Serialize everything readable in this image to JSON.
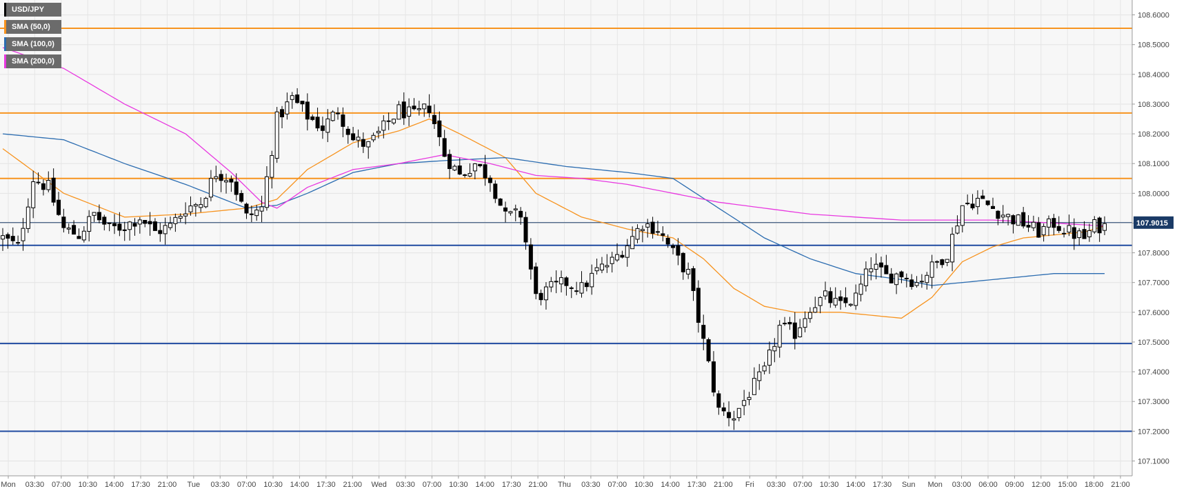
{
  "symbol": "USD/JPY",
  "legend": [
    {
      "label": "USD/JPY",
      "color": "#000000"
    },
    {
      "label": "SMA (50,0)",
      "color": "#f7931e"
    },
    {
      "label": "SMA (100,0)",
      "color": "#2b6cb0"
    },
    {
      "label": "SMA (200,0)",
      "color": "#e838e0"
    }
  ],
  "current_price": "107.9015",
  "colors": {
    "up_candle": "#ffffff",
    "down_candle": "#000000",
    "resistance": "#f7931e",
    "support": "#1f4aa0",
    "sma50": "#f7931e",
    "sma100": "#2b6cb0",
    "sma200": "#e838e0",
    "price_label_bg": "#1a3a66"
  },
  "chart_data": {
    "type": "candlestick",
    "ylim": [
      107.05,
      108.65
    ],
    "y_ticks": [
      "108.6000",
      "108.5000",
      "108.4000",
      "108.3000",
      "108.2000",
      "108.1000",
      "108.0000",
      "107.9000",
      "107.8000",
      "107.7000",
      "107.6000",
      "107.5000",
      "107.4000",
      "107.3000",
      "107.2000",
      "107.1000"
    ],
    "x_ticks": [
      "Mon",
      "03:30",
      "07:00",
      "10:30",
      "14:00",
      "17:30",
      "21:00",
      "Tue",
      "03:30",
      "07:00",
      "10:30",
      "14:00",
      "17:30",
      "21:00",
      "Wed",
      "03:30",
      "07:00",
      "10:30",
      "14:00",
      "17:30",
      "21:00",
      "Thu",
      "03:30",
      "07:00",
      "10:30",
      "14:00",
      "17:30",
      "21:00",
      "Fri",
      "03:30",
      "07:00",
      "10:30",
      "14:00",
      "17:30",
      "Sun",
      "Mon",
      "03:00",
      "06:00",
      "09:00",
      "12:00",
      "15:00",
      "18:00",
      "21:00"
    ],
    "horizontal_levels": [
      {
        "value": 108.555,
        "kind": "resistance"
      },
      {
        "value": 108.27,
        "kind": "resistance"
      },
      {
        "value": 108.05,
        "kind": "resistance"
      },
      {
        "value": 107.825,
        "kind": "support"
      },
      {
        "value": 107.495,
        "kind": "support"
      },
      {
        "value": 107.2,
        "kind": "support"
      }
    ],
    "current_price_line": 107.9015,
    "close_path": [
      [
        0,
        107.85
      ],
      [
        3,
        107.82
      ],
      [
        6,
        108.05
      ],
      [
        9,
        108.02
      ],
      [
        12,
        107.88
      ],
      [
        15,
        107.86
      ],
      [
        18,
        107.93
      ],
      [
        21,
        107.88
      ],
      [
        24,
        107.89
      ],
      [
        27,
        107.92
      ],
      [
        30,
        107.87
      ],
      [
        33,
        107.89
      ],
      [
        36,
        107.95
      ],
      [
        39,
        107.97
      ],
      [
        42,
        108.07
      ],
      [
        45,
        108.05
      ],
      [
        48,
        107.92
      ],
      [
        51,
        107.95
      ],
      [
        54,
        108.25
      ],
      [
        57,
        108.32
      ],
      [
        60,
        108.26
      ],
      [
        63,
        108.22
      ],
      [
        66,
        108.28
      ],
      [
        69,
        108.18
      ],
      [
        72,
        108.16
      ],
      [
        75,
        108.22
      ],
      [
        78,
        108.28
      ],
      [
        81,
        108.26
      ],
      [
        84,
        108.29
      ],
      [
        87,
        108.13
      ],
      [
        90,
        108.06
      ],
      [
        93,
        108.1
      ],
      [
        96,
        108.05
      ],
      [
        99,
        107.92
      ],
      [
        102,
        107.93
      ],
      [
        105,
        107.65
      ],
      [
        108,
        107.68
      ],
      [
        111,
        107.7
      ],
      [
        114,
        107.68
      ],
      [
        117,
        107.74
      ],
      [
        120,
        107.77
      ],
      [
        123,
        107.83
      ],
      [
        126,
        107.9
      ],
      [
        129,
        107.88
      ],
      [
        132,
        107.8
      ],
      [
        135,
        107.73
      ],
      [
        138,
        107.5
      ],
      [
        141,
        107.27
      ],
      [
        144,
        107.25
      ],
      [
        147,
        107.33
      ],
      [
        150,
        107.4
      ],
      [
        153,
        107.55
      ],
      [
        156,
        107.53
      ],
      [
        159,
        107.62
      ],
      [
        162,
        107.65
      ],
      [
        165,
        107.62
      ],
      [
        168,
        107.65
      ],
      [
        171,
        107.76
      ],
      [
        174,
        107.72
      ],
      [
        177,
        107.73
      ],
      [
        180,
        107.7
      ],
      [
        183,
        107.75
      ],
      [
        186,
        107.8
      ],
      [
        189,
        107.96
      ],
      [
        192,
        107.98
      ],
      [
        195,
        107.95
      ],
      [
        198,
        107.92
      ],
      [
        201,
        107.9
      ],
      [
        204,
        107.87
      ],
      [
        207,
        107.9
      ],
      [
        210,
        107.87
      ],
      [
        213,
        107.85
      ],
      [
        215,
        107.89
      ],
      [
        217,
        107.89
      ]
    ],
    "sma50": [
      [
        0,
        108.15
      ],
      [
        12,
        108.0
      ],
      [
        24,
        107.92
      ],
      [
        36,
        107.93
      ],
      [
        48,
        107.95
      ],
      [
        54,
        107.98
      ],
      [
        60,
        108.08
      ],
      [
        69,
        108.17
      ],
      [
        78,
        108.21
      ],
      [
        84,
        108.25
      ],
      [
        90,
        108.2
      ],
      [
        99,
        108.12
      ],
      [
        105,
        108.0
      ],
      [
        114,
        107.92
      ],
      [
        123,
        107.88
      ],
      [
        132,
        107.85
      ],
      [
        138,
        107.78
      ],
      [
        144,
        107.68
      ],
      [
        150,
        107.62
      ],
      [
        156,
        107.6
      ],
      [
        165,
        107.6
      ],
      [
        171,
        107.59
      ],
      [
        177,
        107.58
      ],
      [
        183,
        107.65
      ],
      [
        189,
        107.77
      ],
      [
        195,
        107.82
      ],
      [
        201,
        107.85
      ],
      [
        207,
        107.86
      ],
      [
        213,
        107.87
      ],
      [
        217,
        107.89
      ]
    ],
    "sma100": [
      [
        0,
        108.2
      ],
      [
        12,
        108.18
      ],
      [
        24,
        108.1
      ],
      [
        36,
        108.03
      ],
      [
        42,
        107.99
      ],
      [
        48,
        107.95
      ],
      [
        54,
        107.96
      ],
      [
        60,
        108.0
      ],
      [
        69,
        108.07
      ],
      [
        78,
        108.1
      ],
      [
        87,
        108.11
      ],
      [
        99,
        108.12
      ],
      [
        111,
        108.09
      ],
      [
        123,
        108.07
      ],
      [
        132,
        108.05
      ],
      [
        141,
        107.95
      ],
      [
        150,
        107.85
      ],
      [
        159,
        107.78
      ],
      [
        168,
        107.73
      ],
      [
        177,
        107.71
      ],
      [
        183,
        107.69
      ],
      [
        189,
        107.7
      ],
      [
        195,
        107.71
      ],
      [
        201,
        107.72
      ],
      [
        207,
        107.73
      ],
      [
        213,
        107.73
      ],
      [
        217,
        107.73
      ]
    ],
    "sma200": [
      [
        0,
        108.49
      ],
      [
        12,
        108.42
      ],
      [
        24,
        108.3
      ],
      [
        36,
        108.2
      ],
      [
        45,
        108.07
      ],
      [
        51,
        107.97
      ],
      [
        54,
        107.95
      ],
      [
        60,
        108.02
      ],
      [
        69,
        108.08
      ],
      [
        78,
        108.1
      ],
      [
        87,
        108.13
      ],
      [
        96,
        108.1
      ],
      [
        105,
        108.06
      ],
      [
        114,
        108.05
      ],
      [
        123,
        108.03
      ],
      [
        132,
        108.0
      ],
      [
        141,
        107.97
      ],
      [
        150,
        107.95
      ],
      [
        159,
        107.93
      ],
      [
        168,
        107.92
      ],
      [
        177,
        107.91
      ],
      [
        186,
        107.91
      ],
      [
        195,
        107.91
      ],
      [
        207,
        107.9
      ],
      [
        217,
        107.89
      ]
    ]
  }
}
